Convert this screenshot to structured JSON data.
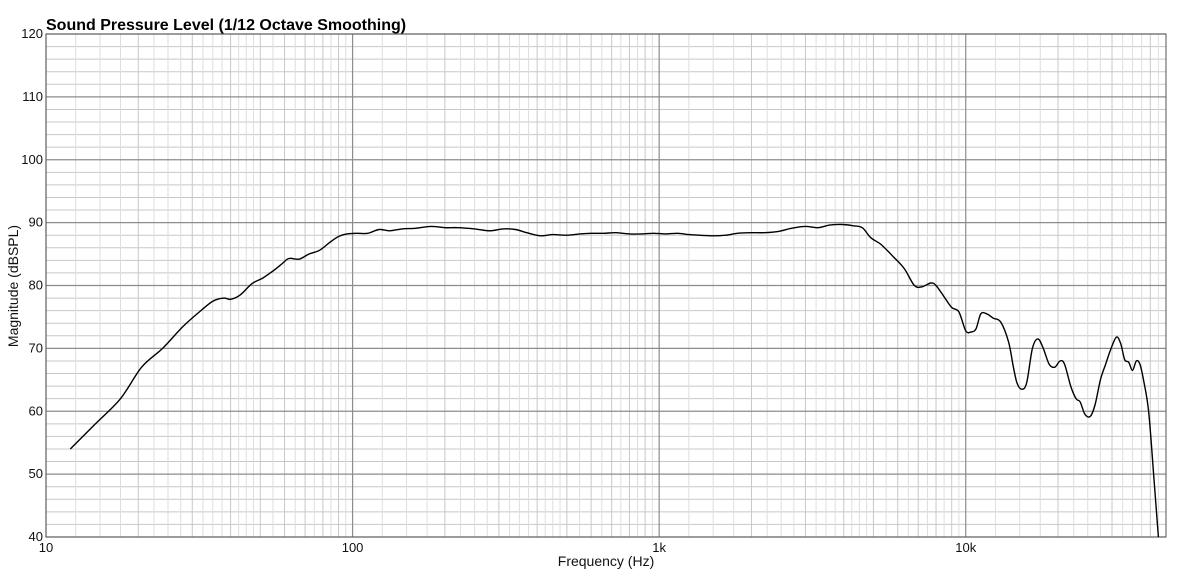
{
  "chart_data": {
    "type": "line",
    "title": "Sound Pressure Level (1/12 Octave Smoothing)",
    "xlabel": "Frequency (Hz)",
    "ylabel": "Magnitude (dBSPL)",
    "x_scale": "log",
    "xlim": [
      10,
      45000
    ],
    "ylim": [
      40,
      120
    ],
    "x_ticks": [
      {
        "value": 10,
        "label": "10"
      },
      {
        "value": 100,
        "label": "100"
      },
      {
        "value": 1000,
        "label": "1k"
      },
      {
        "value": 10000,
        "label": "10k"
      }
    ],
    "y_ticks": [
      {
        "value": 40,
        "label": "40"
      },
      {
        "value": 50,
        "label": "50"
      },
      {
        "value": 60,
        "label": "60"
      },
      {
        "value": 70,
        "label": "70"
      },
      {
        "value": 80,
        "label": "80"
      },
      {
        "value": 90,
        "label": "90"
      },
      {
        "value": 100,
        "label": "100"
      },
      {
        "value": 110,
        "label": "110"
      },
      {
        "value": 120,
        "label": "120"
      }
    ],
    "grid": true,
    "colors": {
      "line": "#000000",
      "major_grid": "#8c8c8c",
      "minor_grid": "#c8c8c8",
      "axis": "#555555"
    },
    "series": [
      {
        "x": [
          12,
          14.5,
          17.5,
          20.5,
          24,
          28,
          32,
          35,
          38,
          40,
          43,
          47,
          51,
          55,
          59,
          62,
          67,
          72,
          78,
          84,
          90,
          96,
          104,
          112,
          122,
          132,
          145,
          160,
          180,
          200,
          220,
          250,
          280,
          310,
          340,
          370,
          410,
          450,
          500,
          550,
          600,
          660,
          720,
          800,
          880,
          960,
          1050,
          1150,
          1250,
          1350,
          1500,
          1650,
          1800,
          2000,
          2200,
          2450,
          2700,
          3000,
          3300,
          3600,
          3950,
          4300,
          4600,
          4900,
          5300,
          5800,
          6300,
          6800,
          7200,
          7700,
          8000,
          8500,
          9000,
          9500,
          10000,
          10400,
          10800,
          11200,
          11700,
          12300,
          13000,
          13800,
          14300,
          14700,
          15200,
          15800,
          16500,
          17200,
          17900,
          18700,
          19500,
          20300,
          21000,
          22000,
          22900,
          23600,
          24500,
          25500,
          26400,
          27500,
          28600,
          29800,
          31000,
          32000,
          33000,
          34000,
          35000,
          36000,
          37000,
          38000,
          39500,
          41000,
          42500
        ],
        "y": [
          54,
          58,
          62,
          67,
          70,
          73.5,
          76,
          77.5,
          78,
          77.8,
          78.5,
          80.3,
          81.2,
          82.3,
          83.5,
          84.3,
          84.2,
          85,
          85.6,
          86.8,
          87.8,
          88.2,
          88.3,
          88.3,
          88.9,
          88.7,
          89,
          89.1,
          89.4,
          89.2,
          89.2,
          89,
          88.7,
          89,
          88.9,
          88.4,
          87.9,
          88.1,
          88,
          88.2,
          88.3,
          88.3,
          88.4,
          88.2,
          88.2,
          88.3,
          88.2,
          88.3,
          88.1,
          88,
          87.9,
          88,
          88.3,
          88.4,
          88.4,
          88.6,
          89.1,
          89.4,
          89.2,
          89.6,
          89.7,
          89.5,
          89.2,
          87.6,
          86.5,
          84.6,
          82.7,
          80,
          79.8,
          80.4,
          80,
          78.2,
          76.5,
          75.8,
          72.8,
          72.6,
          73.1,
          75.5,
          75.5,
          74.8,
          74.2,
          71,
          67,
          64.5,
          63.5,
          64.5,
          70,
          71.5,
          70,
          67.5,
          67,
          68,
          67.5,
          64,
          62,
          61.5,
          59.5,
          59.2,
          61,
          65,
          67.5,
          70,
          71.8,
          70.8,
          68.2,
          67.8,
          66.5,
          68,
          67.5,
          65,
          60,
          50,
          40
        ]
      }
    ]
  }
}
